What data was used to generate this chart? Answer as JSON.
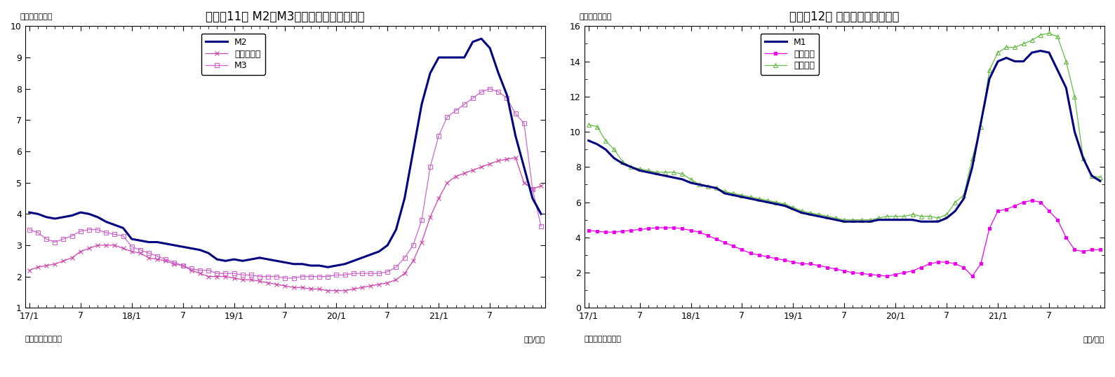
{
  "chart1": {
    "title": "（図表11） M2、M3、広義流動性の伸び率",
    "ylabel": "（前年比、％）",
    "xlabel": "（年/月）",
    "source": "（資料）日本銀行",
    "legend_M2": "M2",
    "legend_broad": "広義流動性",
    "legend_M3": "M3",
    "ylim": [
      1,
      10
    ],
    "yticks": [
      1,
      2,
      3,
      4,
      5,
      6,
      7,
      8,
      9,
      10
    ],
    "xtick_labels": [
      "17/1",
      "7",
      "18/1",
      "7",
      "19/1",
      "7",
      "20/1",
      "7",
      "21/1",
      "7"
    ],
    "M2": [
      4.05,
      4.0,
      3.9,
      3.85,
      3.9,
      3.95,
      4.05,
      4.0,
      3.9,
      3.75,
      3.65,
      3.55,
      3.2,
      3.15,
      3.1,
      3.1,
      3.05,
      3.0,
      2.95,
      2.9,
      2.85,
      2.75,
      2.55,
      2.5,
      2.55,
      2.5,
      2.55,
      2.6,
      2.55,
      2.5,
      2.45,
      2.4,
      2.4,
      2.35,
      2.35,
      2.3,
      2.35,
      2.4,
      2.5,
      2.6,
      2.7,
      2.8,
      3.0,
      3.5,
      4.5,
      6.0,
      7.5,
      8.5,
      9.0,
      9.0,
      9.0,
      9.0,
      9.5,
      9.6,
      9.3,
      8.5,
      7.8,
      6.5,
      5.5,
      4.5,
      4.0
    ],
    "M3": [
      3.5,
      3.4,
      3.2,
      3.1,
      3.2,
      3.3,
      3.45,
      3.5,
      3.5,
      3.4,
      3.35,
      3.3,
      2.95,
      2.85,
      2.75,
      2.65,
      2.55,
      2.45,
      2.35,
      2.25,
      2.2,
      2.2,
      2.1,
      2.1,
      2.1,
      2.05,
      2.05,
      2.0,
      2.0,
      2.0,
      1.95,
      1.95,
      2.0,
      2.0,
      2.0,
      2.0,
      2.05,
      2.05,
      2.1,
      2.1,
      2.1,
      2.1,
      2.15,
      2.3,
      2.6,
      3.0,
      3.8,
      5.5,
      6.5,
      7.1,
      7.3,
      7.5,
      7.7,
      7.9,
      8.0,
      7.9,
      7.7,
      7.2,
      6.9,
      4.8,
      3.6
    ],
    "broad_liquidity": [
      2.2,
      2.3,
      2.35,
      2.4,
      2.5,
      2.6,
      2.8,
      2.9,
      3.0,
      3.0,
      3.0,
      2.9,
      2.8,
      2.75,
      2.6,
      2.55,
      2.5,
      2.4,
      2.35,
      2.2,
      2.1,
      2.0,
      2.0,
      2.0,
      1.95,
      1.9,
      1.9,
      1.85,
      1.8,
      1.75,
      1.7,
      1.65,
      1.65,
      1.6,
      1.6,
      1.55,
      1.55,
      1.55,
      1.6,
      1.65,
      1.7,
      1.75,
      1.8,
      1.9,
      2.1,
      2.5,
      3.1,
      3.9,
      4.5,
      5.0,
      5.2,
      5.3,
      5.4,
      5.5,
      5.6,
      5.7,
      5.75,
      5.8,
      5.0,
      4.8,
      4.9
    ],
    "M2_color": "#000080",
    "M3_color": "#CC66CC",
    "broad_liquidity_color": "#CC44AA",
    "n_points": 61
  },
  "chart2": {
    "title": "（図表12） 現金・預金の伸び率",
    "ylabel": "（前年比、％）",
    "xlabel": "（年/月）",
    "source": "（資料）日本銀行",
    "legend_M1": "M1",
    "legend_cash": "現金通貨",
    "legend_deposit": "預金通貨",
    "ylim": [
      0,
      16
    ],
    "yticks": [
      0,
      2,
      4,
      6,
      8,
      10,
      12,
      14,
      16
    ],
    "xtick_labels": [
      "17/1",
      "7",
      "18/1",
      "7",
      "19/1",
      "7",
      "20/1",
      "7",
      "21/1",
      "7"
    ],
    "M1": [
      9.5,
      9.3,
      9.0,
      8.5,
      8.2,
      8.0,
      7.8,
      7.7,
      7.6,
      7.5,
      7.4,
      7.3,
      7.1,
      7.0,
      6.9,
      6.8,
      6.5,
      6.4,
      6.3,
      6.2,
      6.1,
      6.0,
      5.9,
      5.8,
      5.6,
      5.4,
      5.3,
      5.2,
      5.1,
      5.0,
      4.9,
      4.9,
      4.9,
      4.9,
      5.0,
      5.0,
      5.0,
      5.0,
      5.0,
      4.9,
      4.9,
      4.9,
      5.1,
      5.5,
      6.2,
      8.0,
      10.5,
      13.0,
      14.0,
      14.2,
      14.0,
      14.0,
      14.5,
      14.6,
      14.5,
      13.5,
      12.5,
      10.0,
      8.5,
      7.5,
      7.2
    ],
    "cash_currency": [
      4.4,
      4.35,
      4.3,
      4.3,
      4.35,
      4.4,
      4.45,
      4.5,
      4.55,
      4.55,
      4.55,
      4.5,
      4.4,
      4.3,
      4.1,
      3.9,
      3.7,
      3.5,
      3.3,
      3.1,
      3.0,
      2.9,
      2.8,
      2.7,
      2.6,
      2.5,
      2.5,
      2.4,
      2.3,
      2.2,
      2.1,
      2.0,
      1.95,
      1.9,
      1.85,
      1.8,
      1.9,
      2.0,
      2.1,
      2.3,
      2.5,
      2.6,
      2.6,
      2.5,
      2.3,
      1.8,
      2.5,
      4.5,
      5.5,
      5.6,
      5.8,
      6.0,
      6.1,
      6.0,
      5.5,
      5.0,
      4.0,
      3.3,
      3.2,
      3.3,
      3.3
    ],
    "deposit_currency": [
      10.4,
      10.3,
      9.5,
      9.0,
      8.3,
      8.0,
      7.9,
      7.8,
      7.7,
      7.7,
      7.7,
      7.6,
      7.3,
      7.0,
      6.9,
      6.8,
      6.6,
      6.5,
      6.4,
      6.3,
      6.2,
      6.1,
      6.0,
      5.9,
      5.7,
      5.5,
      5.4,
      5.3,
      5.2,
      5.1,
      5.0,
      5.0,
      5.0,
      5.0,
      5.1,
      5.2,
      5.2,
      5.2,
      5.3,
      5.2,
      5.2,
      5.1,
      5.3,
      6.0,
      6.4,
      8.5,
      10.3,
      13.5,
      14.5,
      14.8,
      14.8,
      15.0,
      15.2,
      15.5,
      15.6,
      15.4,
      14.0,
      12.0,
      8.5,
      7.5,
      7.4
    ],
    "M1_color": "#000080",
    "cash_color": "#EE00EE",
    "deposit_color": "#66BB44",
    "n_points": 61
  }
}
